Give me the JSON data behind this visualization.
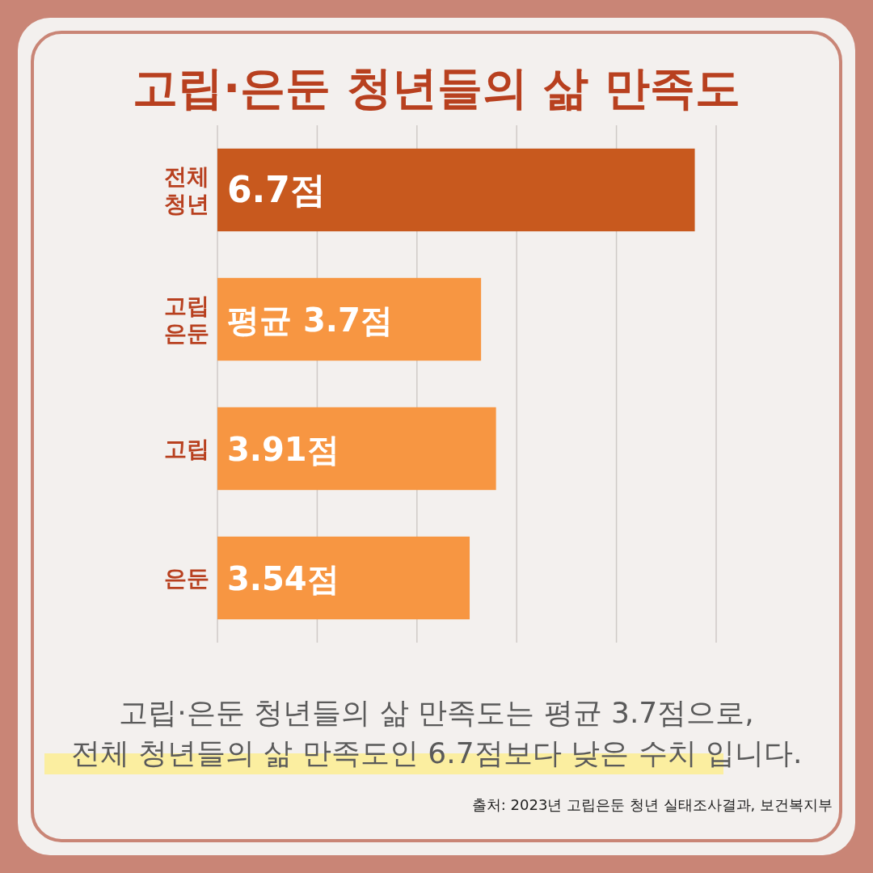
{
  "chart_data": {
    "type": "bar",
    "orientation": "horizontal",
    "title": "고립·은둔 청년들의 삶 만족도",
    "categories": [
      "전체 청년",
      "고립 은둔",
      "고립",
      "은둔"
    ],
    "values": [
      6.7,
      3.7,
      3.91,
      3.54
    ],
    "colors": [
      "#c8591e",
      "#f79642",
      "#f79642",
      "#f79642"
    ],
    "value_labels": [
      "6.7점",
      "평균 3.7점",
      "3.91점",
      "3.54점"
    ],
    "xlim": [
      0,
      7
    ],
    "xticks": [
      {
        "value": 0,
        "label": null
      },
      {
        "value": 1.4,
        "label": null
      },
      {
        "value": 2.8,
        "label": null
      },
      {
        "value": 4.2,
        "label": null
      },
      {
        "value": 5.6,
        "label": null
      },
      {
        "value": 7,
        "label": null
      }
    ],
    "tick_labels": "y",
    "grid": "x",
    "annotations": [
      "고립·은둔 청년들의 삶 만족도는 평균 3.7점으로,",
      "전체 청년들의 삶 만족도인 6.7점보다 낮은 수치 입니다.",
      "출처: 2023년 고립은둔 청년 실태조사결과, 보건복지부"
    ]
  }
}
